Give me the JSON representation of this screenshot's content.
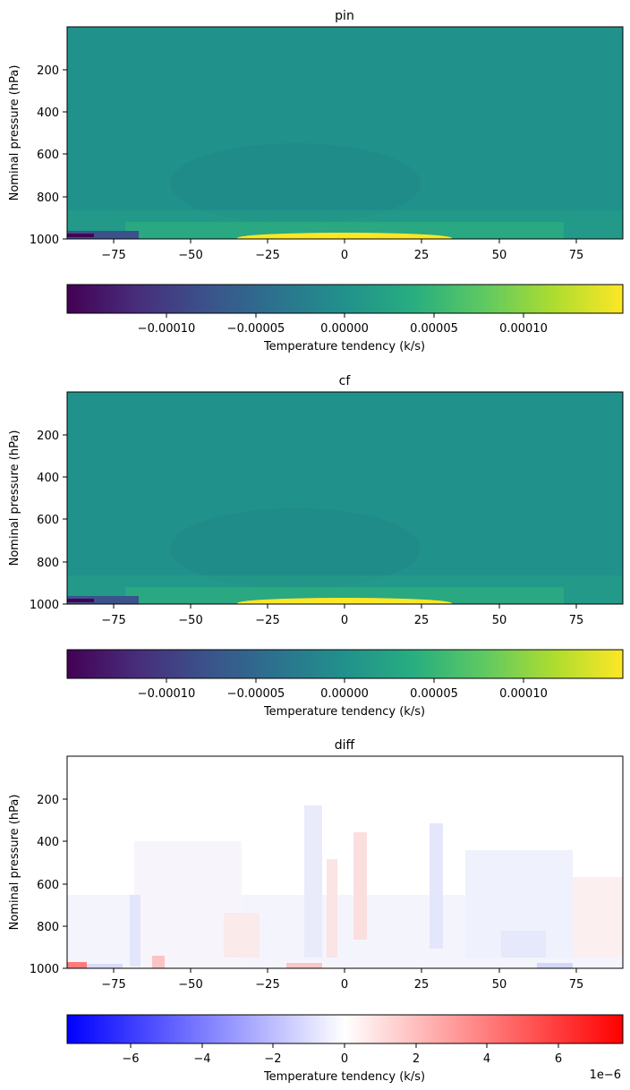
{
  "chart_data": [
    {
      "type": "heatmap",
      "title": "pin",
      "xlabel": "",
      "ylabel": "Nominal pressure (hPa)",
      "xlim": [
        -90,
        90
      ],
      "ylim": [
        1000,
        0
      ],
      "xticks": [
        -75,
        -50,
        -25,
        0,
        25,
        50,
        75
      ],
      "xtick_labels": [
        "−75",
        "−50",
        "−25",
        "0",
        "25",
        "50",
        "75"
      ],
      "yticks": [
        200,
        400,
        600,
        800,
        1000
      ],
      "ytick_labels": [
        "200",
        "400",
        "600",
        "800",
        "1000"
      ],
      "colormap": "viridis",
      "colorbar": {
        "label": "Temperature tendency (k/s)",
        "range": [
          -0.000142,
          0.000142
        ],
        "ticks": [
          -0.0001,
          -5e-05,
          0,
          5e-05,
          0.0001
        ],
        "tick_labels": [
          "−0.00010",
          "−0.00005",
          "0.00000",
          "0.00005",
          "0.00010"
        ],
        "offset_text": ""
      },
      "field_features": [
        {
          "lat": [
            -90,
            90
          ],
          "p": [
            0,
            1000
          ],
          "value": 0.0,
          "note": "background near zero"
        },
        {
          "lat": [
            -90,
            -68
          ],
          "p": [
            975,
            1000
          ],
          "value": -0.00013,
          "note": "strong cooling near south-pole surface"
        },
        {
          "lat": [
            -68,
            68
          ],
          "p": [
            850,
            1000
          ],
          "value": 2e-05,
          "note": "weak warming in lower troposphere"
        },
        {
          "lat": [
            -25,
            25
          ],
          "p": [
            990,
            1000
          ],
          "value": 0.00013,
          "note": "strong warming at the surface in the tropics"
        },
        {
          "lat": [
            -50,
            20
          ],
          "p": [
            600,
            900
          ],
          "value": -1e-05,
          "note": "weak cooling in mid troposphere"
        }
      ]
    },
    {
      "type": "heatmap",
      "title": "cf",
      "xlabel": "",
      "ylabel": "Nominal pressure (hPa)",
      "xlim": [
        -90,
        90
      ],
      "ylim": [
        1000,
        0
      ],
      "xticks": [
        -75,
        -50,
        -25,
        0,
        25,
        50,
        75
      ],
      "xtick_labels": [
        "−75",
        "−50",
        "−25",
        "0",
        "25",
        "50",
        "75"
      ],
      "yticks": [
        200,
        400,
        600,
        800,
        1000
      ],
      "ytick_labels": [
        "200",
        "400",
        "600",
        "800",
        "1000"
      ],
      "colormap": "viridis",
      "colorbar": {
        "label": "Temperature tendency (k/s)",
        "range": [
          -0.000142,
          0.000142
        ],
        "ticks": [
          -0.0001,
          -5e-05,
          0,
          5e-05,
          0.0001
        ],
        "tick_labels": [
          "−0.00010",
          "−0.00005",
          "0.00000",
          "0.00005",
          "0.00010"
        ],
        "offset_text": ""
      },
      "field_features": [
        {
          "lat": [
            -90,
            90
          ],
          "p": [
            0,
            1000
          ],
          "value": 0.0,
          "note": "background near zero"
        },
        {
          "lat": [
            -90,
            -68
          ],
          "p": [
            975,
            1000
          ],
          "value": -0.00013,
          "note": "strong cooling near south-pole surface"
        },
        {
          "lat": [
            -68,
            68
          ],
          "p": [
            850,
            1000
          ],
          "value": 2e-05,
          "note": "weak warming in lower troposphere"
        },
        {
          "lat": [
            -25,
            25
          ],
          "p": [
            990,
            1000
          ],
          "value": 0.00013,
          "note": "strong warming at the surface in the tropics"
        },
        {
          "lat": [
            -50,
            20
          ],
          "p": [
            600,
            900
          ],
          "value": -1e-05,
          "note": "weak cooling in mid troposphere"
        }
      ]
    },
    {
      "type": "heatmap",
      "title": "diff",
      "xlabel": "",
      "ylabel": "Nominal pressure (hPa)",
      "xlim": [
        -90,
        90
      ],
      "ylim": [
        1000,
        0
      ],
      "xticks": [
        -75,
        -50,
        -25,
        0,
        25,
        50,
        75
      ],
      "xtick_labels": [
        "−75",
        "−50",
        "−25",
        "0",
        "25",
        "50",
        "75"
      ],
      "yticks": [
        200,
        400,
        600,
        800,
        1000
      ],
      "ytick_labels": [
        "200",
        "400",
        "600",
        "800",
        "1000"
      ],
      "colormap": "bwr",
      "colorbar": {
        "label": "Temperature tendency (k/s)",
        "range": [
          -7.8e-06,
          7.8e-06
        ],
        "ticks": [
          -6e-06,
          -4e-06,
          -2e-06,
          0,
          2e-06,
          4e-06,
          6e-06
        ],
        "tick_labels": [
          "−6",
          "−4",
          "−2",
          "0",
          "2",
          "4",
          "6"
        ],
        "offset_text": "1e−6"
      },
      "field_features": [
        {
          "lat": [
            -90,
            90
          ],
          "p": [
            0,
            1000
          ],
          "value": 0.0,
          "note": "mostly near zero"
        },
        {
          "lat": [
            -90,
            -80
          ],
          "p": [
            985,
            1000
          ],
          "value": 6e-06,
          "note": "strong positive near south-pole surface"
        },
        {
          "lat": [
            -10,
            10
          ],
          "p": [
            400,
            900
          ],
          "value": 1.2e-06,
          "note": "patchy positive/negative columns"
        },
        {
          "lat": [
            25,
            90
          ],
          "p": [
            400,
            1000
          ],
          "value": -1e-06,
          "note": "weak negative region"
        }
      ]
    }
  ]
}
